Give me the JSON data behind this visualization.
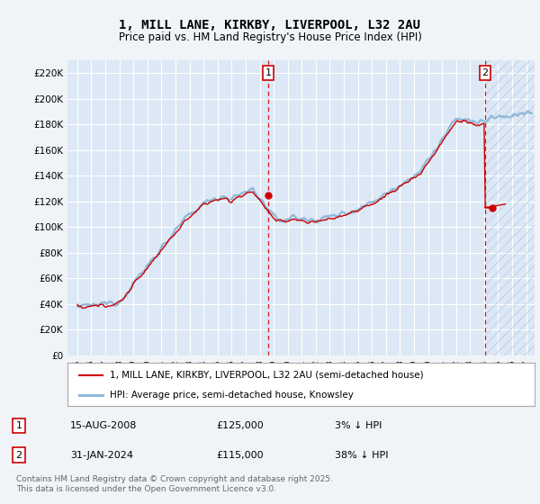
{
  "title": "1, MILL LANE, KIRKBY, LIVERPOOL, L32 2AU",
  "subtitle": "Price paid vs. HM Land Registry's House Price Index (HPI)",
  "ylim": [
    0,
    230000
  ],
  "yticks": [
    0,
    20000,
    40000,
    60000,
    80000,
    100000,
    120000,
    140000,
    160000,
    180000,
    200000,
    220000
  ],
  "ytick_labels": [
    "£0",
    "£20K",
    "£40K",
    "£60K",
    "£80K",
    "£100K",
    "£120K",
    "£140K",
    "£160K",
    "£180K",
    "£200K",
    "£220K"
  ],
  "background_color": "#f0f4f8",
  "plot_bg_color": "#dce8f5",
  "plot_bg_hatch_color": "#c8d8ea",
  "grid_color": "#ffffff",
  "hpi_color": "#90b8d8",
  "price_color": "#cc0000",
  "marker1_x": 2008.62,
  "marker2_x": 2024.08,
  "marker1_price": 125000,
  "marker2_price": 115000,
  "legend_label1": "1, MILL LANE, KIRKBY, LIVERPOOL, L32 2AU (semi-detached house)",
  "legend_label2": "HPI: Average price, semi-detached house, Knowsley",
  "transaction1_date": "15-AUG-2008",
  "transaction1_price": "£125,000",
  "transaction1_hpi": "3% ↓ HPI",
  "transaction2_date": "31-JAN-2024",
  "transaction2_price": "£115,000",
  "transaction2_hpi": "38% ↓ HPI",
  "footer": "Contains HM Land Registry data © Crown copyright and database right 2025.\nThis data is licensed under the Open Government Licence v3.0.",
  "title_fontsize": 10,
  "subtitle_fontsize": 8.5,
  "tick_fontsize": 7.5,
  "legend_fontsize": 7.5
}
